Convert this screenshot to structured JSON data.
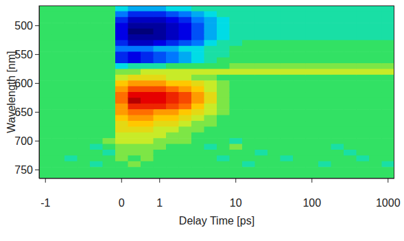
{
  "chart_data": {
    "type": "heatmap",
    "xlabel": "Delay Time [ps]",
    "ylabel": "Wavelength [nm]",
    "categories": [
      "-1",
      null,
      null,
      null,
      null,
      null,
      "0",
      null,
      null,
      "1",
      null,
      null,
      null,
      null,
      null,
      "10",
      null,
      null,
      null,
      null,
      null,
      "100",
      null,
      null,
      null,
      null,
      null,
      "1000"
    ],
    "y": [
      470,
      480,
      490,
      500,
      510,
      520,
      530,
      540,
      550,
      560,
      570,
      580,
      590,
      600,
      610,
      620,
      630,
      640,
      650,
      660,
      670,
      680,
      690,
      700,
      710,
      720,
      730,
      740,
      750,
      760
    ],
    "ylim": [
      465,
      765
    ],
    "yticks": [
      500,
      550,
      600,
      650,
      700,
      750
    ],
    "zlim": [
      -10,
      10
    ],
    "cells": [
      [
        0,
        0,
        0,
        0,
        0,
        0,
        -2,
        -3,
        -3,
        -3,
        -2,
        -2,
        -1,
        -1,
        -1,
        -1,
        -1,
        -1,
        -1,
        -1,
        -1,
        -1,
        -1,
        -1,
        -1,
        -1,
        -1,
        -1
      ],
      [
        0,
        0,
        0,
        0,
        0,
        0,
        -4,
        -6,
        -6,
        -6,
        -5,
        -4,
        -3,
        -2,
        -1,
        -1,
        -1,
        -1,
        -1,
        -1,
        -1,
        -1,
        -1,
        -1,
        -1,
        -1,
        -1,
        -1
      ],
      [
        0,
        0,
        0,
        0,
        0,
        0,
        -6,
        -8,
        -8,
        -8,
        -7,
        -6,
        -4,
        -3,
        -2,
        -1,
        -1,
        -1,
        -1,
        -1,
        -1,
        -1,
        -1,
        -1,
        -1,
        -1,
        -1,
        -1
      ],
      [
        0,
        0,
        0,
        0,
        0,
        0,
        -7,
        -9,
        -9,
        -9,
        -8,
        -7,
        -5,
        -3,
        -2,
        -1,
        -1,
        -1,
        -1,
        -1,
        -1,
        -1,
        -1,
        -1,
        -1,
        -1,
        -1,
        -1
      ],
      [
        0,
        0,
        0,
        0,
        0,
        0,
        -7,
        -10,
        -10,
        -9,
        -8,
        -7,
        -5,
        -3,
        -2,
        -1,
        -1,
        -1,
        -1,
        -1,
        -1,
        -1,
        -1,
        -1,
        -1,
        -1,
        -1,
        -1
      ],
      [
        0,
        0,
        0,
        0,
        0,
        0,
        -7,
        -9,
        -9,
        -9,
        -8,
        -7,
        -5,
        -3,
        -2,
        -1,
        -1,
        -1,
        -1,
        -1,
        -1,
        -1,
        -1,
        -1,
        -1,
        -1,
        -1,
        -1
      ],
      [
        0,
        0,
        0,
        0,
        0,
        0,
        -6,
        -8,
        -8,
        -7,
        -6,
        -5,
        -4,
        -2,
        -1,
        -1,
        0,
        0,
        0,
        0,
        0,
        0,
        0,
        0,
        0,
        0,
        0,
        0
      ],
      [
        0,
        0,
        0,
        0,
        0,
        0,
        -4,
        -4,
        -4,
        -3,
        -3,
        -2,
        -2,
        -1,
        -1,
        0,
        0,
        0,
        0,
        0,
        0,
        0,
        0,
        0,
        0,
        0,
        0,
        0
      ],
      [
        0,
        0,
        0,
        0,
        0,
        0,
        -6,
        -7,
        -6,
        -5,
        -4,
        -3,
        -2,
        -1,
        -1,
        0,
        0,
        0,
        0,
        0,
        0,
        0,
        0,
        0,
        0,
        0,
        0,
        0
      ],
      [
        0,
        0,
        0,
        0,
        0,
        0,
        -6,
        -7,
        -6,
        -5,
        -4,
        -3,
        -2,
        -1,
        0,
        0,
        0,
        0,
        0,
        0,
        0,
        0,
        0,
        0,
        0,
        0,
        0,
        0
      ],
      [
        0,
        0,
        0,
        0,
        0,
        0,
        -2,
        -1,
        -1,
        -1,
        0,
        0,
        0,
        0,
        0,
        1,
        1,
        1,
        1,
        1,
        1,
        1,
        1,
        1,
        1,
        1,
        1,
        1
      ],
      [
        0,
        0,
        0,
        0,
        0,
        0,
        1,
        1,
        2,
        2,
        2,
        2,
        2,
        2,
        2,
        2,
        2,
        2,
        2,
        2,
        2,
        2,
        2,
        2,
        2,
        2,
        2,
        2
      ],
      [
        0,
        0,
        0,
        0,
        0,
        0,
        2,
        3,
        3,
        3,
        2,
        2,
        1,
        1,
        0,
        0,
        0,
        0,
        0,
        0,
        0,
        0,
        0,
        0,
        0,
        0,
        0,
        0
      ],
      [
        0,
        0,
        0,
        0,
        0,
        0,
        4,
        5,
        5,
        5,
        4,
        4,
        3,
        2,
        1,
        0,
        0,
        0,
        0,
        0,
        0,
        0,
        0,
        0,
        0,
        0,
        0,
        0
      ],
      [
        0,
        0,
        0,
        0,
        0,
        0,
        5,
        7,
        7,
        7,
        6,
        5,
        4,
        2,
        1,
        0,
        0,
        0,
        0,
        0,
        0,
        0,
        0,
        0,
        0,
        0,
        0,
        0
      ],
      [
        0,
        0,
        0,
        0,
        0,
        0,
        6,
        9,
        9,
        9,
        8,
        7,
        5,
        3,
        1,
        0,
        0,
        0,
        0,
        0,
        0,
        0,
        0,
        0,
        0,
        0,
        0,
        0
      ],
      [
        0,
        0,
        0,
        0,
        0,
        0,
        6,
        10,
        9,
        9,
        8,
        7,
        5,
        3,
        1,
        0,
        0,
        0,
        0,
        0,
        0,
        0,
        0,
        0,
        0,
        0,
        0,
        0
      ],
      [
        0,
        0,
        0,
        0,
        0,
        0,
        5,
        8,
        8,
        8,
        7,
        6,
        4,
        2,
        1,
        0,
        0,
        0,
        0,
        0,
        0,
        0,
        0,
        0,
        0,
        0,
        0,
        0
      ],
      [
        0,
        0,
        0,
        0,
        0,
        0,
        5,
        6,
        6,
        5,
        5,
        4,
        3,
        2,
        1,
        0,
        0,
        0,
        0,
        0,
        0,
        0,
        0,
        0,
        0,
        0,
        0,
        0
      ],
      [
        0,
        0,
        0,
        0,
        0,
        0,
        4,
        5,
        5,
        4,
        4,
        3,
        2,
        1,
        0,
        0,
        0,
        0,
        0,
        0,
        0,
        0,
        0,
        0,
        0,
        0,
        0,
        0
      ],
      [
        0,
        0,
        0,
        0,
        0,
        0,
        3,
        4,
        4,
        3,
        3,
        2,
        1,
        1,
        0,
        0,
        0,
        0,
        0,
        0,
        0,
        0,
        0,
        0,
        0,
        0,
        0,
        0
      ],
      [
        0,
        0,
        0,
        0,
        0,
        0,
        3,
        3,
        3,
        2,
        2,
        1,
        1,
        0,
        0,
        0,
        0,
        0,
        0,
        0,
        0,
        0,
        0,
        0,
        0,
        0,
        0,
        0
      ],
      [
        0,
        0,
        0,
        0,
        0,
        0,
        2,
        2,
        2,
        2,
        1,
        1,
        0,
        0,
        0,
        0,
        0,
        0,
        0,
        0,
        0,
        0,
        0,
        0,
        0,
        0,
        0,
        0
      ],
      [
        0,
        0,
        0,
        0,
        0,
        1,
        2,
        2,
        2,
        1,
        1,
        1,
        0,
        0,
        0,
        -1,
        0,
        0,
        0,
        0,
        0,
        0,
        0,
        0,
        0,
        0,
        0,
        0
      ],
      [
        0,
        0,
        0,
        0,
        -1,
        0,
        1,
        1,
        1,
        1,
        0,
        0,
        0,
        -1,
        0,
        1,
        0,
        0,
        0,
        0,
        0,
        0,
        0,
        -1,
        0,
        0,
        0,
        0
      ],
      [
        0,
        0,
        0,
        0,
        0,
        -1,
        1,
        1,
        1,
        0,
        0,
        0,
        0,
        0,
        0,
        0,
        0,
        -1,
        0,
        0,
        0,
        0,
        0,
        0,
        -1,
        0,
        0,
        0
      ],
      [
        0,
        0,
        -1,
        0,
        0,
        0,
        1,
        0,
        1,
        0,
        0,
        0,
        0,
        0,
        -1,
        0,
        0,
        0,
        0,
        -1,
        0,
        0,
        0,
        0,
        0,
        -1,
        0,
        0
      ],
      [
        0,
        0,
        0,
        0,
        -1,
        0,
        0,
        1,
        0,
        0,
        0,
        0,
        0,
        0,
        0,
        0,
        -1,
        0,
        0,
        0,
        0,
        0,
        -1,
        0,
        0,
        0,
        0,
        -1
      ],
      [
        0,
        0,
        0,
        0,
        0,
        0,
        0,
        0,
        0,
        0,
        0,
        0,
        0,
        0,
        0,
        0,
        0,
        0,
        0,
        0,
        0,
        0,
        0,
        0,
        0,
        0,
        0,
        0
      ],
      [
        0,
        0,
        0,
        0,
        0,
        0,
        0,
        0,
        0,
        0,
        0,
        0,
        0,
        0,
        0,
        0,
        0,
        0,
        0,
        0,
        0,
        0,
        0,
        0,
        0,
        0,
        0,
        0
      ]
    ]
  }
}
